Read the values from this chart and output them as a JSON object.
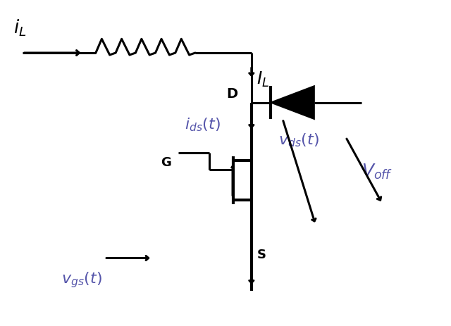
{
  "bg_color": "#ffffff",
  "line_color": "#000000",
  "label_color": "#5555aa",
  "figsize": [
    6.4,
    4.63
  ],
  "dpi": 100,
  "lw": 2.2,
  "lw_thick": 3.0
}
